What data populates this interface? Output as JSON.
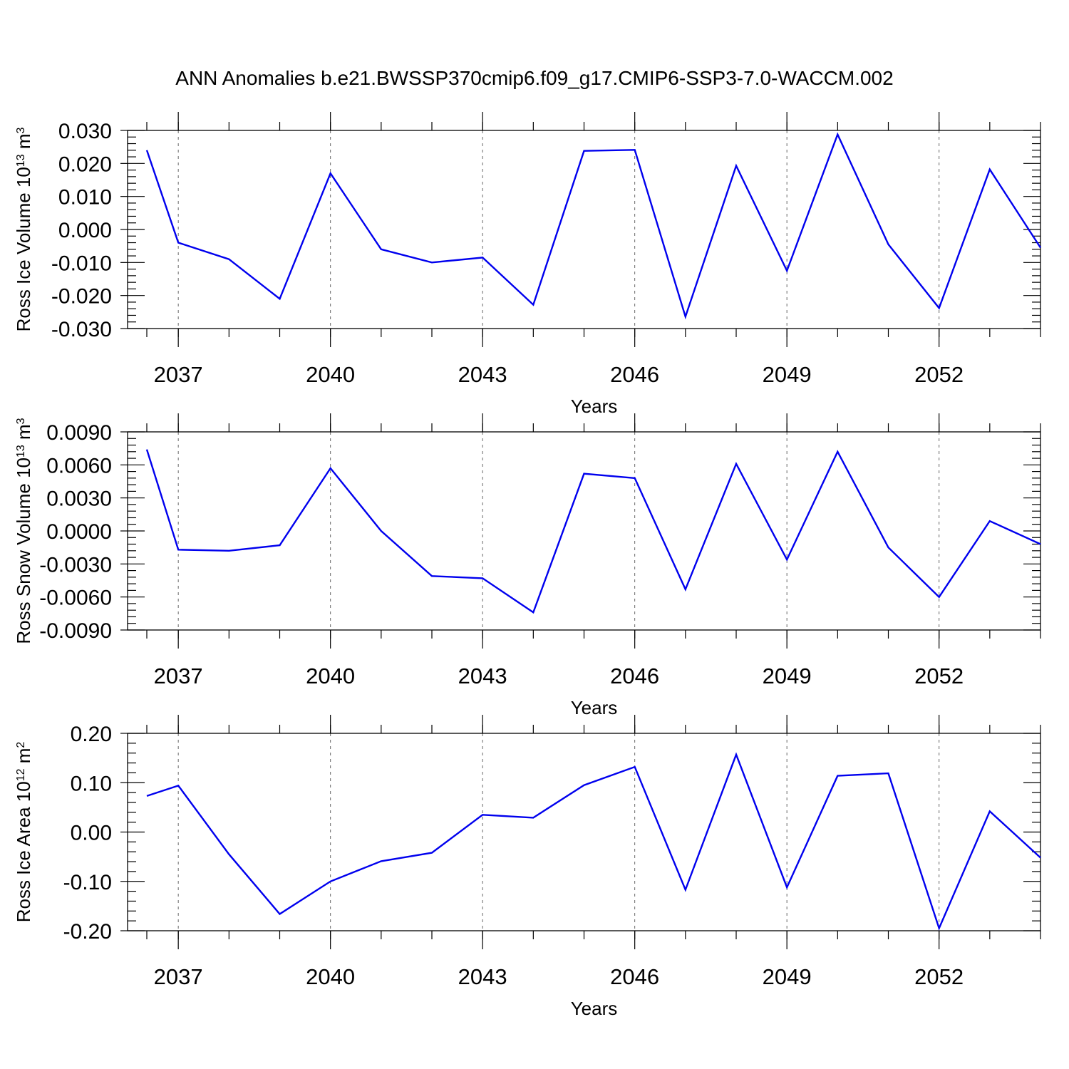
{
  "title": "ANN Anomalies b.e21.BWSSP370cmip6.f09_g17.CMIP6-SSP3-7.0-WACCM.002",
  "colors": {
    "series": "#0000ee",
    "grid": "#666666",
    "axis": "#000000"
  },
  "chart_data": [
    {
      "type": "line",
      "ylabel": {
        "text": "Ross Ice Volume 10",
        "exp": "13",
        "unit": " m",
        "unit_exp": "3"
      },
      "xlabel": "Years",
      "xlim": [
        2036,
        2054
      ],
      "ylim": [
        -0.03,
        0.03
      ],
      "yticks": [
        -0.03,
        -0.02,
        -0.01,
        0.0,
        0.01,
        0.02,
        0.03
      ],
      "yticklabels": [
        "-0.030",
        "-0.020",
        "-0.010",
        "0.000",
        "0.010",
        "0.020",
        "0.030"
      ],
      "xticks": [
        2037,
        2040,
        2043,
        2046,
        2049,
        2052
      ],
      "xticklabels": [
        "2037",
        "2040",
        "2043",
        "2046",
        "2049",
        "2052"
      ],
      "grid_x": true,
      "series": [
        {
          "x": [
            2036,
            2037,
            2038,
            2039,
            2040,
            2041,
            2042,
            2043,
            2044,
            2045,
            2046,
            2047,
            2048,
            2049,
            2050,
            2051,
            2052,
            2053,
            2054
          ],
          "values": [
            0.024,
            -0.004,
            -0.009,
            -0.021,
            0.017,
            -0.006,
            -0.01,
            -0.0085,
            -0.0228,
            0.0238,
            0.0241,
            -0.0264,
            0.0193,
            -0.0125,
            0.0288,
            -0.0045,
            -0.0238,
            0.0182,
            -0.0055
          ]
        }
      ]
    },
    {
      "type": "line",
      "ylabel": {
        "text": "Ross Snow Volume 10",
        "exp": "13",
        "unit": " m",
        "unit_exp": "3"
      },
      "xlabel": "Years",
      "xlim": [
        2036,
        2054
      ],
      "ylim": [
        -0.009,
        0.009
      ],
      "yticks": [
        -0.009,
        -0.006,
        -0.003,
        0.0,
        0.003,
        0.006,
        0.009
      ],
      "yticklabels": [
        "-0.0090",
        "-0.0060",
        "-0.0030",
        "0.0000",
        "0.0030",
        "0.0060",
        "0.0090"
      ],
      "xticks": [
        2037,
        2040,
        2043,
        2046,
        2049,
        2052
      ],
      "xticklabels": [
        "2037",
        "2040",
        "2043",
        "2046",
        "2049",
        "2052"
      ],
      "grid_x": true,
      "series": [
        {
          "x": [
            2036,
            2037,
            2038,
            2039,
            2040,
            2041,
            2042,
            2043,
            2044,
            2045,
            2046,
            2047,
            2048,
            2049,
            2050,
            2051,
            2052,
            2053,
            2054
          ],
          "values": [
            0.0074,
            -0.0017,
            -0.0018,
            -0.0013,
            0.0057,
            0.0,
            -0.0041,
            -0.0043,
            -0.0074,
            0.0052,
            0.0048,
            -0.0053,
            0.0061,
            -0.0026,
            0.0072,
            -0.0015,
            -0.006,
            0.0009,
            -0.0012
          ]
        }
      ]
    },
    {
      "type": "line",
      "ylabel": {
        "text": "Ross Ice Area 10",
        "exp": "12",
        "unit": " m",
        "unit_exp": "2"
      },
      "xlabel": "Years",
      "xlim": [
        2036,
        2054
      ],
      "ylim": [
        -0.2,
        0.2
      ],
      "yticks": [
        -0.2,
        -0.1,
        0.0,
        0.1,
        0.2
      ],
      "yticklabels": [
        "-0.20",
        "-0.10",
        "0.00",
        "0.10",
        "0.20"
      ],
      "xticks": [
        2037,
        2040,
        2043,
        2046,
        2049,
        2052
      ],
      "xticklabels": [
        "2037",
        "2040",
        "2043",
        "2046",
        "2049",
        "2052"
      ],
      "grid_x": true,
      "series": [
        {
          "x": [
            2036,
            2037,
            2038,
            2039,
            2040,
            2041,
            2042,
            2043,
            2044,
            2045,
            2046,
            2047,
            2048,
            2049,
            2050,
            2051,
            2052,
            2053,
            2054
          ],
          "values": [
            0.073,
            0.094,
            -0.045,
            -0.166,
            -0.1,
            -0.059,
            -0.042,
            0.035,
            0.029,
            0.095,
            0.132,
            -0.117,
            0.157,
            -0.112,
            0.114,
            0.119,
            -0.195,
            0.042,
            -0.052
          ]
        }
      ]
    }
  ]
}
